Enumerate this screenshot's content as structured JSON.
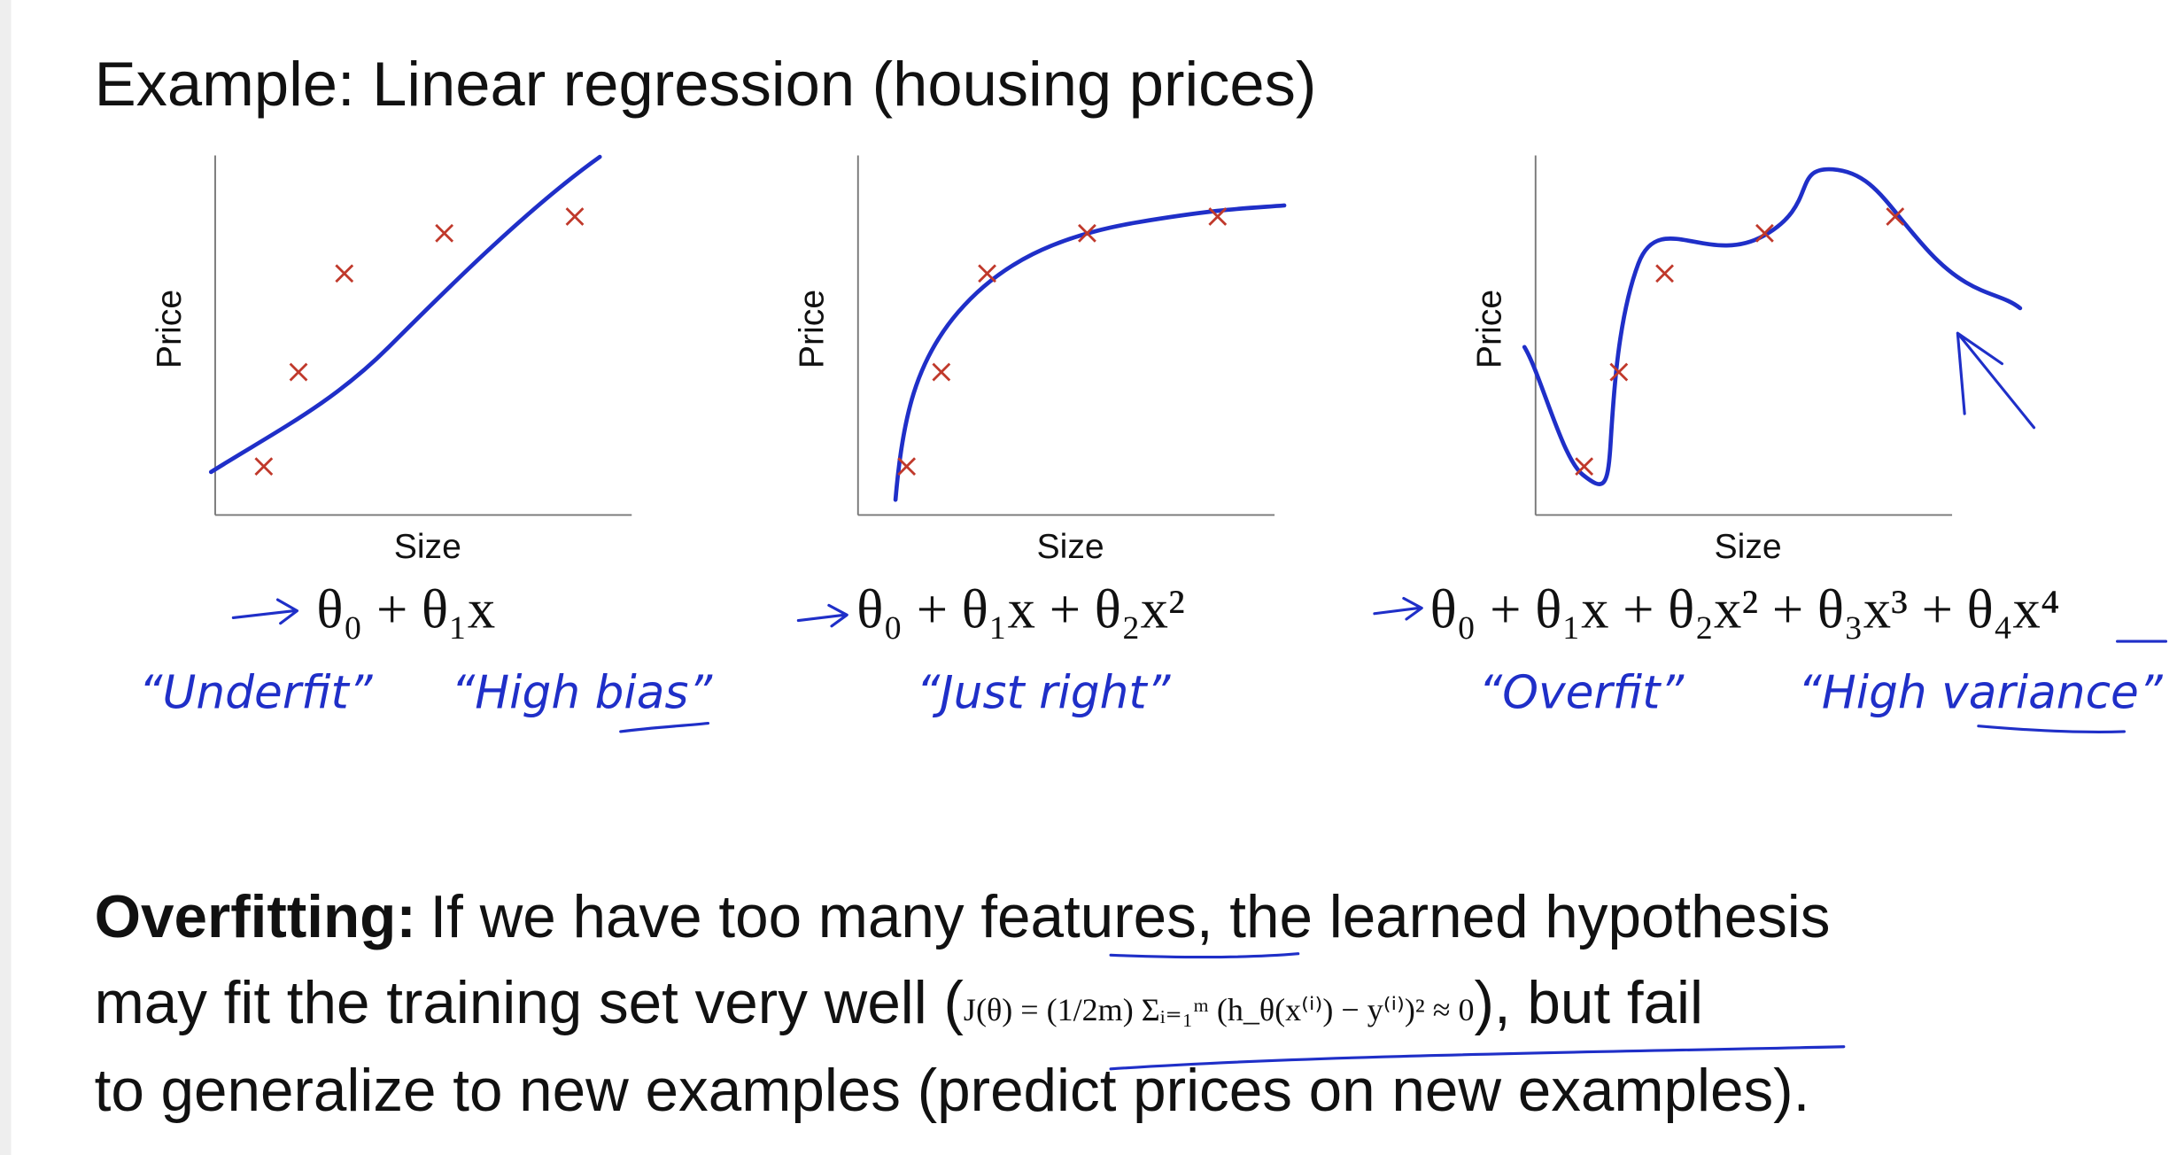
{
  "title": "Example: Linear regression (housing prices)",
  "panels": [
    {
      "y_label": "Price",
      "x_label": "Size",
      "hypothesis": "θ₀ + θ₁x",
      "notes": [
        "“Underfit”",
        "“High bias”"
      ]
    },
    {
      "y_label": "Price",
      "x_label": "Size",
      "hypothesis": "θ₀ + θ₁x + θ₂x²",
      "notes": [
        "“Just right”"
      ]
    },
    {
      "y_label": "Price",
      "x_label": "Size",
      "hypothesis": "θ₀ + θ₁x + θ₂x² + θ₃x³ + θ₄x⁴",
      "notes": [
        "“Overfit”",
        "“High variance”"
      ]
    }
  ],
  "paragraph": {
    "lead": "Overfitting:",
    "line1": "If we have too many features, the learned hypothesis",
    "line2_start": "may fit the training set very well (",
    "formula": "J(θ) = (1/2m) Σᵢ₌₁ᵐ (h_θ(x⁽ⁱ⁾) − y⁽ⁱ⁾)² ≈ 0",
    "line2_end": "), but fail",
    "line3": "to generalize to new examples (predict prices on new examples)."
  }
}
